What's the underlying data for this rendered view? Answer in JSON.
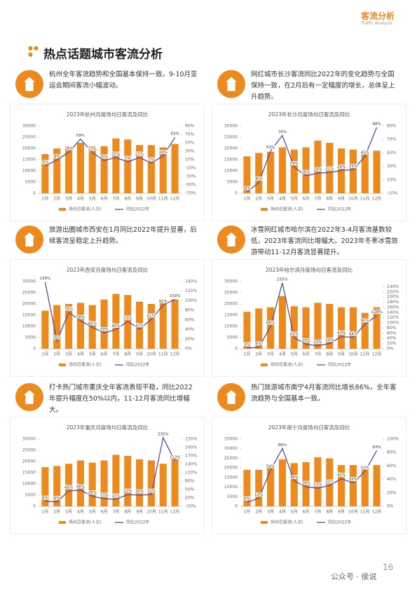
{
  "header": {
    "title": "客流分析",
    "subtitle": "Traffic Analysis"
  },
  "page_title": "热点话题城市客流分析",
  "sections": [
    {
      "text": "杭州全年客流趋势和全国基本保持一致。9-10月亚运会期间客流小幅波动。"
    },
    {
      "text": "网红城市长沙客流同比2022年的变化趋势与全国保持一致，在2月后有一定幅度的增长，总体呈上升趋势。"
    },
    {
      "text": "旅游出圈城市西安在1月同比2022年提升显著，后续客流呈稳定上升趋势。"
    },
    {
      "text": "冰雪网红城市哈尔滨在2022年3-4月客流基数较低，2023年客流同比增幅大。2023年冬季冰雪旅游带动11-12月客流显著提升。"
    },
    {
      "text": "打卡热门城市重庆全年客流表现平稳，同比2022年提升幅度在50%以内，11-12月客流同比增幅大。"
    },
    {
      "text": "热门旅游城市南宁4月客流同比增长86%，全年客流趋势与全国基本一致。"
    }
  ],
  "chart_data": [
    {
      "type": "bar-line",
      "title": "2023年杭州月度场均日客流及同比",
      "categories": [
        "1月",
        "2月",
        "3月",
        "4月",
        "5月",
        "6月",
        "7月",
        "8月",
        "9月",
        "10月",
        "11月",
        "12月"
      ],
      "series": [
        {
          "name": "场均日客流(人次)",
          "color": "#ec8a1d",
          "values": [
            17500,
            20000,
            21000,
            22500,
            21000,
            21000,
            24500,
            24000,
            21500,
            21500,
            20500,
            22000
          ]
        },
        {
          "name": "同比2022年",
          "color": "#5b4a9e",
          "axis": "y2",
          "values": [
            -5,
            9,
            28,
            59,
            27,
            8,
            15,
            5,
            15,
            2,
            19,
            63
          ],
          "value_labels": [
            "-5%",
            "9%",
            "28%",
            "59%",
            "27%",
            "8%",
            "15%",
            "5%",
            "15%",
            "2%",
            "19%",
            "63%"
          ]
        }
      ],
      "ylim": [
        0,
        30000
      ],
      "yticks": [
        0,
        5000,
        10000,
        15000,
        20000,
        25000,
        30000
      ],
      "y2lim": [
        -70,
        90
      ],
      "y2ticks": [
        {
          "value": -70,
          "label": "-70%"
        },
        {
          "value": -50,
          "label": "-50%"
        },
        {
          "value": -30,
          "label": "-30%"
        },
        {
          "value": -10,
          "label": "-10%"
        },
        {
          "value": 10,
          "label": "10%"
        },
        {
          "value": 30,
          "label": "30%"
        },
        {
          "value": 50,
          "label": "50%"
        },
        {
          "value": 70,
          "label": "70%"
        },
        {
          "value": 90,
          "label": "90%"
        }
      ]
    },
    {
      "type": "bar-line",
      "title": "2023年长沙月度场均日客流及同比",
      "categories": [
        "1月",
        "2月",
        "3月",
        "4月",
        "5月",
        "6月",
        "7月",
        "8月",
        "9月",
        "10月",
        "11月",
        "12月"
      ],
      "series": [
        {
          "name": "场均日客流(人次)",
          "color": "#ec8a1d",
          "values": [
            16500,
            18000,
            18500,
            20500,
            19500,
            20500,
            23500,
            22500,
            20000,
            19500,
            19000,
            19000
          ]
        },
        {
          "name": "同比2022年",
          "color": "#5b4a9e",
          "axis": "y2",
          "values": [
            -8,
            6,
            53,
            76,
            29,
            16,
            20,
            21,
            24,
            25,
            45,
            88
          ],
          "value_labels": [
            "-8%",
            "6%",
            "53%",
            "76%",
            "29%",
            "16%",
            "20%",
            "21%",
            "24%",
            "25%",
            "45%",
            "88%"
          ]
        }
      ],
      "ylim": [
        0,
        30000
      ],
      "yticks": [
        0,
        5000,
        10000,
        15000,
        20000,
        25000,
        30000
      ],
      "y2lim": [
        -10,
        90
      ],
      "y2ticks": [
        {
          "value": -10,
          "label": "-10%"
        },
        {
          "value": 10,
          "label": "10%"
        },
        {
          "value": 30,
          "label": "30%"
        },
        {
          "value": 50,
          "label": "50%"
        },
        {
          "value": 70,
          "label": "70%"
        },
        {
          "value": 90,
          "label": "90%"
        }
      ]
    },
    {
      "type": "bar-line",
      "title": "2023年西安月度场均日客流及同比",
      "categories": [
        "1月",
        "2月",
        "3月",
        "4月",
        "5月",
        "6月",
        "7月",
        "8月",
        "9月",
        "10月",
        "11月",
        "12月"
      ],
      "series": [
        {
          "name": "场均日客流(人次)",
          "color": "#ec8a1d",
          "values": [
            17000,
            19500,
            20000,
            20500,
            19500,
            22000,
            24500,
            24000,
            21000,
            20000,
            20500,
            22000
          ]
        },
        {
          "name": "同比2022年",
          "color": "#5b4a9e",
          "axis": "y2",
          "values": [
            139,
            16,
            76,
            58,
            45,
            33,
            40,
            57,
            41,
            61,
            91,
            103
          ],
          "value_labels": [
            "139%",
            "16%",
            "76%",
            "58%",
            "45%",
            "33%",
            "40%",
            "57%",
            "41%",
            "61%",
            "91%",
            "103%"
          ]
        }
      ],
      "ylim": [
        0,
        30000
      ],
      "yticks": [
        0,
        5000,
        10000,
        15000,
        20000,
        25000,
        30000
      ],
      "y2lim": [
        0,
        140
      ],
      "y2ticks": [
        {
          "value": 0,
          "label": "0%"
        },
        {
          "value": 20,
          "label": "20%"
        },
        {
          "value": 40,
          "label": "40%"
        },
        {
          "value": 60,
          "label": "60%"
        },
        {
          "value": 80,
          "label": "80%"
        },
        {
          "value": 100,
          "label": "100%"
        },
        {
          "value": 120,
          "label": "120%"
        },
        {
          "value": 140,
          "label": "140%"
        }
      ]
    },
    {
      "type": "bar-line",
      "title": "2023年哈尔滨月度场均日客流及同比",
      "categories": [
        "1月",
        "2月",
        "3月",
        "4月",
        "5月",
        "6月",
        "7月",
        "8月",
        "9月",
        "10月",
        "11月",
        "12月"
      ],
      "series": [
        {
          "name": "场均日客流(人次)",
          "color": "#ec8a1d",
          "values": [
            16500,
            18000,
            18500,
            23500,
            19000,
            18500,
            20500,
            20000,
            18500,
            18500,
            16000,
            18500
          ]
        },
        {
          "name": "同比2022年",
          "color": "#5b4a9e",
          "axis": "y2",
          "values": [
            3,
            6,
            86,
            255,
            43,
            17,
            12,
            20,
            47,
            44,
            95,
            128
          ],
          "value_labels": [
            "3%",
            "6%",
            "86%",
            "255%",
            "43%",
            "17%",
            "12%",
            "20%",
            "47%",
            "44%",
            "95%",
            "128%"
          ]
        }
      ],
      "ylim": [
        0,
        30000
      ],
      "yticks": [
        0,
        5000,
        10000,
        15000,
        20000,
        25000,
        30000
      ],
      "y2lim": [
        0,
        260
      ],
      "y2ticks": [
        {
          "value": 0,
          "label": "0%"
        },
        {
          "value": 20,
          "label": "20%"
        },
        {
          "value": 40,
          "label": "40%"
        },
        {
          "value": 60,
          "label": "60%"
        },
        {
          "value": 80,
          "label": "80%"
        },
        {
          "value": 100,
          "label": "100%"
        },
        {
          "value": 120,
          "label": "120%"
        },
        {
          "value": 140,
          "label": "140%"
        },
        {
          "value": 160,
          "label": "160%"
        },
        {
          "value": 180,
          "label": "180%"
        },
        {
          "value": 200,
          "label": "200%"
        },
        {
          "value": 220,
          "label": "220%"
        },
        {
          "value": 240,
          "label": "240%"
        }
      ]
    },
    {
      "type": "bar-line",
      "title": "2023年重庆月度场均日客流及同比",
      "categories": [
        "1月",
        "2月",
        "3月",
        "4月",
        "5月",
        "6月",
        "7月",
        "8月",
        "9月",
        "10月",
        "11月",
        "12月"
      ],
      "series": [
        {
          "name": "场均日客流(人次)",
          "color": "#ec8a1d",
          "values": [
            17500,
            18000,
            19000,
            20500,
            19500,
            20500,
            23000,
            22500,
            21000,
            20500,
            19000,
            21500
          ]
        },
        {
          "name": "同比2022年",
          "color": "#5b4a9e",
          "axis": "y2",
          "values": [
            8,
            6,
            45,
            48,
            26,
            17,
            15,
            32,
            30,
            32,
            235,
            152
          ],
          "value_labels": [
            "8%",
            "6%",
            "45%",
            "48%",
            "26%",
            "17%",
            "15%",
            "32%",
            "30%",
            "32%",
            "235%",
            "152%"
          ]
        }
      ],
      "ylim": [
        0,
        30000
      ],
      "yticks": [
        0,
        5000,
        10000,
        15000,
        20000,
        25000,
        30000
      ],
      "y2lim": [
        -10,
        230
      ],
      "y2ticks": [
        {
          "value": -10,
          "label": "-10%"
        },
        {
          "value": 20,
          "label": "20%"
        },
        {
          "value": 50,
          "label": "50%"
        },
        {
          "value": 80,
          "label": "80%"
        },
        {
          "value": 110,
          "label": "110%"
        },
        {
          "value": 140,
          "label": "140%"
        },
        {
          "value": 170,
          "label": "170%"
        },
        {
          "value": 200,
          "label": "200%"
        },
        {
          "value": 230,
          "label": "230%"
        }
      ]
    },
    {
      "type": "bar-line",
      "title": "2023年南宁月度场均日客流及同比",
      "categories": [
        "1月",
        "2月",
        "3月",
        "4月",
        "5月",
        "6月",
        "7月",
        "8月",
        "9月",
        "10月",
        "11月",
        "12月"
      ],
      "series": [
        {
          "name": "场均日客流(人次)",
          "color": "#ec8a1d",
          "values": [
            19000,
            19000,
            22000,
            24500,
            22500,
            23000,
            25500,
            25000,
            21500,
            21500,
            21000,
            21500
          ]
        },
        {
          "name": "同比2022年",
          "color": "#5b4a9e",
          "axis": "y2",
          "values": [
            6,
            12,
            54,
            86,
            38,
            29,
            27,
            31,
            41,
            35,
            52,
            83
          ],
          "value_labels": [
            "6%",
            "12%",
            "54%",
            "86%",
            "38%",
            "29%",
            "27%",
            "31%",
            "41%",
            "35%",
            "52%",
            "83%"
          ]
        }
      ],
      "ylim": [
        0,
        35000
      ],
      "yticks": [
        0,
        5000,
        10000,
        15000,
        20000,
        25000,
        30000,
        35000
      ],
      "y2lim": [
        0,
        100
      ],
      "y2ticks": [
        {
          "value": 0,
          "label": "0%"
        },
        {
          "value": 20,
          "label": "20%"
        },
        {
          "value": 40,
          "label": "40%"
        },
        {
          "value": 60,
          "label": "60%"
        },
        {
          "value": 80,
          "label": "80%"
        },
        {
          "value": 100,
          "label": "100%"
        }
      ]
    }
  ],
  "footer": {
    "page": "16",
    "watermark": "公众号 · 侯说"
  }
}
